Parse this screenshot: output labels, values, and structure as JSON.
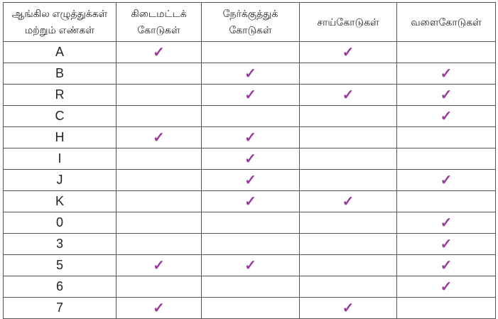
{
  "headers": [
    "ஆங்கில எழுத்துக்கள் மற்றும் எண்கள்",
    "கிடைமட்டக் கோடுகள்",
    "நேர்க்குத்துக் கோடுகள்",
    "சாய்கோடுகள்",
    "வளைகோடுகள்"
  ],
  "check_mark": "✓",
  "check_color": "#9b3a9e",
  "rows": [
    {
      "label": "A",
      "marks": [
        true,
        false,
        true,
        false
      ]
    },
    {
      "label": "B",
      "marks": [
        false,
        true,
        false,
        true
      ]
    },
    {
      "label": "R",
      "marks": [
        false,
        true,
        true,
        true
      ]
    },
    {
      "label": "C",
      "marks": [
        false,
        false,
        false,
        true
      ]
    },
    {
      "label": "H",
      "marks": [
        true,
        true,
        false,
        false
      ]
    },
    {
      "label": "I",
      "marks": [
        false,
        true,
        false,
        false
      ]
    },
    {
      "label": "J",
      "marks": [
        false,
        true,
        false,
        true
      ]
    },
    {
      "label": "K",
      "marks": [
        false,
        true,
        true,
        false
      ]
    },
    {
      "label": "0",
      "marks": [
        false,
        false,
        false,
        true
      ]
    },
    {
      "label": "3",
      "marks": [
        false,
        false,
        false,
        true
      ]
    },
    {
      "label": "5",
      "marks": [
        true,
        true,
        false,
        true
      ]
    },
    {
      "label": "6",
      "marks": [
        false,
        false,
        false,
        true
      ]
    },
    {
      "label": "7",
      "marks": [
        true,
        false,
        true,
        false
      ]
    }
  ]
}
